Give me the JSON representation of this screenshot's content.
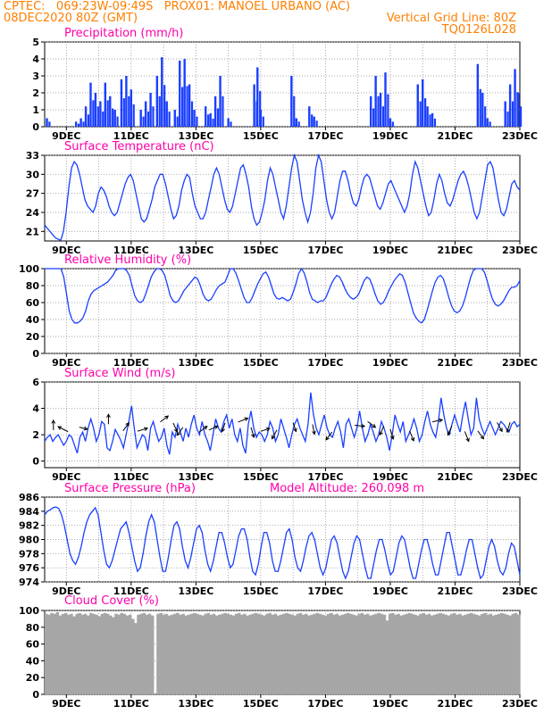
{
  "header": {
    "line1_left": "CPTEC:   069:23W-09:49S   PROX01: MANOEL URBANO (AC)",
    "line2_left": "08DEC2020 80Z (GMT)",
    "line2_right": "Vertical Grid Line: 80Z",
    "line3_right": "TQ0126L028"
  },
  "x_ticks": [
    "9DEC",
    "11DEC",
    "13DEC",
    "15DEC",
    "17DEC",
    "19DEC",
    "21DEC",
    "23DEC"
  ],
  "colors": {
    "series": "#1a3fff",
    "title": "#ff00aa",
    "header": "#ff7f00",
    "cloud": "#a6a6a6",
    "arrow": "#000000"
  },
  "chart_data": [
    {
      "type": "bar",
      "title": "Precipitation (mm/h)",
      "ylim": [
        0,
        5
      ],
      "yticks": [
        "0",
        "1",
        "2",
        "3",
        "4",
        "5"
      ],
      "x_start_day": 8.33,
      "x_end_day": 23,
      "events": [
        [
          8.4,
          0.5
        ],
        [
          9.3,
          0.3
        ],
        [
          9.45,
          0.5
        ],
        [
          9.6,
          1.2
        ],
        [
          9.75,
          2.6
        ],
        [
          9.9,
          2.0
        ],
        [
          10.05,
          1.5
        ],
        [
          10.2,
          2.6
        ],
        [
          10.35,
          1.8
        ],
        [
          10.5,
          1.0
        ],
        [
          10.7,
          2.8
        ],
        [
          10.85,
          3.0
        ],
        [
          11.0,
          2.2
        ],
        [
          11.3,
          1.0
        ],
        [
          11.45,
          1.5
        ],
        [
          11.6,
          2.0
        ],
        [
          11.8,
          3.0
        ],
        [
          11.95,
          4.1
        ],
        [
          12.1,
          1.5
        ],
        [
          12.35,
          1.0
        ],
        [
          12.5,
          3.9
        ],
        [
          12.65,
          4.0
        ],
        [
          12.8,
          2.5
        ],
        [
          12.95,
          1.0
        ],
        [
          13.3,
          1.2
        ],
        [
          13.45,
          0.8
        ],
        [
          13.6,
          1.8
        ],
        [
          13.75,
          3.0
        ],
        [
          14.0,
          0.5
        ],
        [
          14.8,
          2.5
        ],
        [
          14.9,
          3.5
        ],
        [
          15.0,
          1.0
        ],
        [
          15.95,
          3.0
        ],
        [
          16.1,
          0.5
        ],
        [
          16.5,
          1.2
        ],
        [
          16.65,
          0.6
        ],
        [
          18.4,
          1.8
        ],
        [
          18.55,
          3.0
        ],
        [
          18.7,
          2.0
        ],
        [
          18.85,
          3.2
        ],
        [
          19.0,
          0.5
        ],
        [
          19.85,
          2.5
        ],
        [
          20.0,
          2.8
        ],
        [
          20.15,
          1.2
        ],
        [
          20.3,
          0.8
        ],
        [
          21.7,
          3.7
        ],
        [
          21.85,
          2.0
        ],
        [
          22.0,
          0.5
        ],
        [
          22.55,
          1.5
        ],
        [
          22.7,
          2.5
        ],
        [
          22.85,
          3.4
        ],
        [
          22.95,
          2.0
        ]
      ]
    },
    {
      "type": "line",
      "title": "Surface Temperature (nC)",
      "ylim": [
        19.5,
        33
      ],
      "yticks": [
        "21",
        "24",
        "27",
        "30",
        "33"
      ],
      "x_start_day": 8.33,
      "x_end_day": 23,
      "values": [
        22,
        21.5,
        21,
        20.5,
        20,
        19.8,
        19.6,
        21,
        24,
        28,
        31,
        32,
        31.5,
        30,
        28,
        26,
        25,
        24.5,
        24,
        25,
        27,
        28,
        27.5,
        26.5,
        25,
        24,
        23.5,
        24,
        25.5,
        27,
        28.5,
        29.5,
        30,
        29,
        27,
        25,
        23,
        22.5,
        23,
        24.5,
        26,
        28,
        29,
        30,
        30,
        28.5,
        26.5,
        24.5,
        23,
        23.5,
        25,
        27.5,
        29,
        30,
        29.5,
        27,
        25,
        24,
        23,
        23,
        24,
        26,
        28,
        30,
        31,
        30,
        28,
        26,
        24.5,
        24,
        25,
        27,
        29,
        31,
        31.5,
        30,
        28,
        25,
        23,
        22,
        22.5,
        24,
        26,
        29,
        31,
        30,
        28,
        26,
        24,
        23,
        25,
        28,
        31,
        33,
        32,
        29,
        26,
        24,
        22.5,
        24,
        27,
        31,
        33,
        32,
        29,
        26,
        24,
        23,
        24,
        26.5,
        29,
        30.5,
        30.5,
        29,
        27,
        25.5,
        25,
        26,
        28,
        29.5,
        30,
        29.5,
        28,
        26.5,
        25,
        24.5,
        25.5,
        27,
        28.5,
        29,
        28,
        27,
        26,
        25,
        24,
        25,
        27,
        30,
        32,
        31,
        29,
        27,
        25,
        23.5,
        24,
        26,
        28.5,
        30,
        29,
        27,
        25.5,
        25,
        26,
        27.5,
        29,
        30,
        30.5,
        29.5,
        28,
        26,
        24,
        23,
        24,
        26.5,
        29,
        31.5,
        32,
        31,
        28.5,
        26,
        24,
        23.5,
        24.5,
        26.5,
        28.5,
        29,
        28,
        27.5
      ]
    },
    {
      "type": "line",
      "title": "Relative Humidity (%)",
      "ylim": [
        0,
        100
      ],
      "yticks": [
        "0",
        "20",
        "40",
        "60",
        "80",
        "100"
      ],
      "x_start_day": 8.33,
      "x_end_day": 23,
      "values": [
        100,
        100,
        100,
        100,
        100,
        100,
        100,
        90,
        70,
        50,
        40,
        36,
        36,
        38,
        42,
        50,
        62,
        70,
        74,
        76,
        78,
        80,
        82,
        84,
        88,
        92,
        98,
        100,
        100,
        100,
        98,
        92,
        80,
        68,
        62,
        60,
        62,
        70,
        80,
        90,
        96,
        100,
        100,
        98,
        92,
        80,
        68,
        62,
        60,
        62,
        68,
        74,
        78,
        82,
        86,
        90,
        88,
        80,
        70,
        64,
        62,
        64,
        70,
        76,
        80,
        82,
        84,
        92,
        100,
        100,
        95,
        86,
        76,
        66,
        60,
        60,
        66,
        74,
        82,
        88,
        94,
        96,
        90,
        80,
        70,
        65,
        64,
        66,
        64,
        62,
        64,
        72,
        82,
        94,
        100,
        95,
        85,
        72,
        64,
        62,
        60,
        62,
        62,
        66,
        74,
        82,
        88,
        92,
        90,
        84,
        76,
        70,
        66,
        64,
        66,
        70,
        78,
        86,
        90,
        88,
        80,
        70,
        62,
        58,
        60,
        66,
        74,
        80,
        86,
        90,
        94,
        92,
        84,
        72,
        60,
        48,
        42,
        38,
        36,
        40,
        50,
        62,
        74,
        84,
        90,
        92,
        88,
        78,
        66,
        56,
        50,
        48,
        50,
        56,
        66,
        78,
        90,
        98,
        100,
        100,
        100,
        96,
        86,
        74,
        64,
        58,
        56,
        58,
        62,
        68,
        74,
        78,
        78,
        80,
        86
      ]
    },
    {
      "type": "line",
      "title": "Surface Wind (m/s)",
      "ylim": [
        -0.5,
        6
      ],
      "yticks": [
        "0",
        "2",
        "4",
        "6"
      ],
      "x_start_day": 8.33,
      "x_end_day": 23,
      "values": [
        1.5,
        1.8,
        2.0,
        1.5,
        1.8,
        2.0,
        1.6,
        1.2,
        1.5,
        2.0,
        1.8,
        1.2,
        0.6,
        1.8,
        2.2,
        1.5,
        2.5,
        3.2,
        2.5,
        1.5,
        2.0,
        3.0,
        2.8,
        1.0,
        0.8,
        1.5,
        2.4,
        2.0,
        1.6,
        1.0,
        2.0,
        3.0,
        4.2,
        2.5,
        1.0,
        1.5,
        2.0,
        1.8,
        0.8,
        2.5,
        3.0,
        2.2,
        1.5,
        1.8,
        2.5,
        1.2,
        0.5,
        2.2,
        1.8,
        2.8,
        2.2,
        1.5,
        2.5,
        1.8,
        2.8,
        3.5,
        2.5,
        2.0,
        3.0,
        2.0,
        1.5,
        0.8,
        2.0,
        3.2,
        2.5,
        2.2,
        3.0,
        3.5,
        2.5,
        3.2,
        2.0,
        1.5,
        2.5,
        1.2,
        0.6,
        2.8,
        3.8,
        2.5,
        1.8,
        2.2,
        2.0,
        1.5,
        2.0,
        3.0,
        2.5,
        1.5,
        2.0,
        3.2,
        2.5,
        1.8,
        1.0,
        2.0,
        2.8,
        3.2,
        2.5,
        2.0,
        1.5,
        2.8,
        5.2,
        3.5,
        2.5,
        2.0,
        2.8,
        3.5,
        2.5,
        2.0,
        1.8,
        2.5,
        3.0,
        2.2,
        1.0,
        2.8,
        3.2,
        2.5,
        1.8,
        2.5,
        3.8,
        2.5,
        1.5,
        2.0,
        2.8,
        2.2,
        1.5,
        2.0,
        3.0,
        2.5,
        1.8,
        0.8,
        2.0,
        3.5,
        2.8,
        2.2,
        3.0,
        1.5,
        2.0,
        2.5,
        3.2,
        2.5,
        1.5,
        2.0,
        3.0,
        3.8,
        2.8,
        2.2,
        1.8,
        3.0,
        4.8,
        3.5,
        2.5,
        2.0,
        2.8,
        3.5,
        2.8,
        2.2,
        3.5,
        4.5,
        3.2,
        2.0,
        2.5,
        4.8,
        3.2,
        2.5,
        2.0,
        2.5,
        3.0,
        2.5,
        2.0,
        2.5,
        3.0,
        2.8,
        2.5,
        2.2,
        2.8,
        3.0,
        2.6,
        2.8
      ]
    },
    {
      "type": "line",
      "title": "Surface Pressure (hPa)",
      "extra_label": "Model Altitude: 260.098 m",
      "ylim": [
        974,
        986
      ],
      "yticks": [
        "974",
        "976",
        "978",
        "980",
        "982",
        "984",
        "986"
      ],
      "x_start_day": 8.33,
      "x_end_day": 23,
      "values": [
        983.5,
        984,
        984.2,
        984.5,
        984.6,
        984.4,
        983.5,
        982,
        980,
        978,
        977,
        976.5,
        977.5,
        979,
        981,
        982.5,
        983.5,
        984,
        984.5,
        983.5,
        981,
        978.5,
        976.5,
        976,
        977,
        978.5,
        980,
        981.5,
        982,
        982.5,
        981,
        979,
        977,
        975.5,
        976,
        978,
        980.5,
        982.5,
        983.5,
        982.5,
        980,
        977.5,
        975.5,
        975.5,
        977.5,
        980,
        982,
        982.5,
        981.5,
        979,
        977,
        976,
        977.5,
        979.5,
        981.5,
        982,
        981,
        978.5,
        976.5,
        975.5,
        977,
        979,
        981,
        981,
        979.5,
        977.5,
        976,
        976.5,
        978.5,
        980.5,
        981.5,
        981.5,
        980,
        977.5,
        975.5,
        975,
        976.5,
        979,
        981,
        981,
        979.5,
        977,
        975.5,
        975.5,
        977,
        979,
        981,
        981.5,
        980,
        977.5,
        976,
        975.5,
        977,
        979,
        980.5,
        981,
        980,
        978,
        976,
        975,
        976,
        978,
        980,
        980.5,
        979.5,
        977.5,
        975.5,
        974.5,
        975.5,
        977.5,
        979.5,
        980.5,
        980,
        978,
        976,
        974.5,
        974.5,
        976.5,
        978.5,
        980,
        980,
        978.5,
        976.5,
        975,
        975.5,
        977.5,
        979.5,
        980.5,
        980,
        978,
        976,
        974.5,
        974.5,
        976.5,
        978.5,
        980,
        980,
        978.5,
        976.5,
        975,
        975,
        977,
        979,
        981,
        981,
        979,
        977,
        975,
        975,
        976.5,
        978.5,
        980,
        980,
        978,
        976,
        974.5,
        975,
        977,
        979,
        980,
        979,
        977,
        975.5,
        975,
        976,
        978,
        979.5,
        979,
        977,
        975
      ]
    },
    {
      "type": "area",
      "title": "Cloud Cover (%)",
      "ylim": [
        0,
        100
      ],
      "yticks": [
        "0",
        "20",
        "40",
        "60",
        "80",
        "100"
      ],
      "x_start_day": 8.33,
      "x_end_day": 23,
      "values": [
        96,
        95,
        97,
        96,
        98,
        94,
        96,
        97,
        95,
        96,
        93,
        96,
        97,
        95,
        96,
        94,
        97,
        96,
        95,
        93,
        96,
        97,
        96,
        94,
        92,
        96,
        95,
        97,
        96,
        94,
        95,
        90,
        85,
        95,
        96,
        97,
        95,
        96,
        94,
        0,
        96,
        97,
        95,
        96,
        94,
        95,
        96,
        97,
        95,
        96,
        94,
        95,
        96,
        97,
        96,
        95,
        94,
        96,
        97,
        95,
        96,
        94,
        95,
        96,
        97,
        96,
        95,
        94,
        96,
        97,
        95,
        96,
        94,
        95,
        96,
        97,
        96,
        95,
        94,
        96,
        97,
        95,
        96,
        94,
        95,
        96,
        97,
        96,
        95,
        94,
        96,
        97,
        95,
        96,
        94,
        95,
        96,
        97,
        96,
        95,
        94,
        96,
        97,
        95,
        96,
        94,
        95,
        96,
        97,
        96,
        95,
        94,
        96,
        97,
        95,
        96,
        94,
        95,
        96,
        97,
        96,
        95,
        88,
        96,
        97,
        95,
        96,
        94,
        95,
        96,
        97,
        96,
        95,
        94,
        96,
        97,
        95,
        96,
        94,
        95,
        96,
        97,
        96,
        95,
        94,
        96,
        97,
        95,
        96,
        94,
        95,
        96,
        97,
        96,
        95,
        94,
        96,
        97,
        95,
        96,
        94,
        95,
        96,
        97,
        96,
        95,
        94,
        96,
        97,
        95
      ]
    }
  ],
  "wind_arrows": [
    {
      "day": 8.6,
      "u": 0,
      "v": 1,
      "y": 2.6
    },
    {
      "day": 9.05,
      "u": -1,
      "v": 0.5,
      "y": 2.6
    },
    {
      "day": 9.4,
      "u": 0.8,
      "v": -0.2,
      "y": 2.6
    },
    {
      "day": 10.3,
      "u": 0,
      "v": 1,
      "y": 2.6
    },
    {
      "day": 10.75,
      "u": 0.6,
      "v": 0.8,
      "y": 2.6
    },
    {
      "day": 11.2,
      "u": 1,
      "v": 0.3,
      "y": 2.6
    },
    {
      "day": 11.9,
      "u": 0.8,
      "v": 0.6,
      "y": 2.6
    },
    {
      "day": 12.3,
      "u": 0.4,
      "v": -0.9,
      "y": 2.6
    },
    {
      "day": 12.6,
      "u": -0.6,
      "v": -0.8,
      "y": 2.6
    },
    {
      "day": 13.1,
      "u": 0.8,
      "v": 0.6,
      "y": 2.6
    },
    {
      "day": 13.4,
      "u": 0.9,
      "v": 0.4,
      "y": 2.6
    },
    {
      "day": 13.9,
      "u": -0.3,
      "v": -0.9,
      "y": 2.6
    },
    {
      "day": 14.3,
      "u": 1,
      "v": 0.4,
      "y": 2.6
    },
    {
      "day": 14.7,
      "u": 0.3,
      "v": -1,
      "y": 2.6
    },
    {
      "day": 15.0,
      "u": 0.9,
      "v": 0.3,
      "y": 2.6
    },
    {
      "day": 15.5,
      "u": -0.5,
      "v": -0.9,
      "y": 2.6
    },
    {
      "day": 16.0,
      "u": 0.3,
      "v": -0.9,
      "y": 2.6
    },
    {
      "day": 16.6,
      "u": 0.2,
      "v": -1,
      "y": 2.6
    },
    {
      "day": 17.2,
      "u": -0.6,
      "v": -0.8,
      "y": 2.6
    },
    {
      "day": 17.9,
      "u": 1,
      "v": -0.1,
      "y": 2.6
    },
    {
      "day": 18.3,
      "u": 0.8,
      "v": -0.6,
      "y": 2.6
    },
    {
      "day": 18.8,
      "u": -0.4,
      "v": -0.9,
      "y": 2.6
    },
    {
      "day": 19.0,
      "u": 0.3,
      "v": -1,
      "y": 2.6
    },
    {
      "day": 19.6,
      "u": 0.4,
      "v": -1,
      "y": 2.6
    },
    {
      "day": 20.3,
      "u": 1,
      "v": 0.2,
      "y": 2.6
    },
    {
      "day": 20.9,
      "u": -0.4,
      "v": -0.9,
      "y": 2.6
    },
    {
      "day": 21.3,
      "u": 0.4,
      "v": -1,
      "y": 2.6
    },
    {
      "day": 21.7,
      "u": 0.6,
      "v": -0.8,
      "y": 2.6
    },
    {
      "day": 22.3,
      "u": 0.5,
      "v": -0.9,
      "y": 2.6
    },
    {
      "day": 22.7,
      "u": -0.3,
      "v": -1,
      "y": 2.6
    }
  ]
}
